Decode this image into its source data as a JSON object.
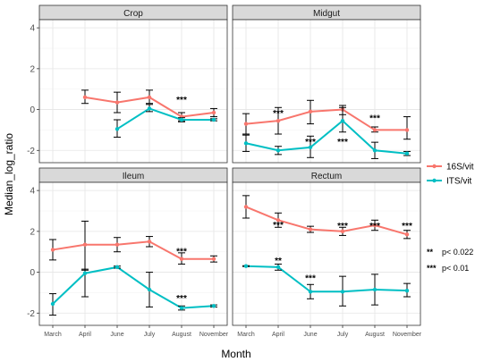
{
  "chart_data": {
    "type": "line",
    "xlabel": "Month",
    "ylabel": "Median_log_ratio",
    "categories": [
      "March",
      "April",
      "June",
      "July",
      "August",
      "November"
    ],
    "ylim": [
      -2.6,
      4.4
    ],
    "yticks": [
      -2,
      0,
      2,
      4
    ],
    "legend": {
      "placement": "right"
    },
    "colors": {
      "16S/vit": "#f8766d",
      "ITS/vit": "#00bfc4"
    },
    "panels": [
      {
        "name": "Crop",
        "series": [
          {
            "name": "16S/vit",
            "points": [
              {
                "x": "April",
                "y": 0.6,
                "lo": 0.3,
                "hi": 0.95
              },
              {
                "x": "June",
                "y": 0.35,
                "lo": -0.15,
                "hi": 0.85
              },
              {
                "x": "July",
                "y": 0.6,
                "lo": 0.3,
                "hi": 0.95
              },
              {
                "x": "August",
                "y": -0.35,
                "lo": -0.55,
                "hi": -0.15
              },
              {
                "x": "November",
                "y": -0.15,
                "lo": -0.35,
                "hi": 0.05
              }
            ]
          },
          {
            "name": "ITS/vit",
            "points": [
              {
                "x": "June",
                "y": -0.95,
                "lo": -1.35,
                "hi": -0.5
              },
              {
                "x": "July",
                "y": 0.05,
                "lo": -0.1,
                "hi": 0.25
              },
              {
                "x": "August",
                "y": -0.5,
                "lo": -0.6,
                "hi": -0.4
              },
              {
                "x": "November",
                "y": -0.5,
                "lo": -0.55,
                "hi": -0.45
              }
            ]
          }
        ],
        "annotations": [
          {
            "x": "August",
            "y": 0.5,
            "text": "***"
          }
        ]
      },
      {
        "name": "Midgut",
        "series": [
          {
            "name": "16S/vit",
            "points": [
              {
                "x": "March",
                "y": -0.7,
                "lo": -1.2,
                "hi": -0.2
              },
              {
                "x": "April",
                "y": -0.55,
                "lo": -1.2,
                "hi": 0.1
              },
              {
                "x": "June",
                "y": -0.1,
                "lo": -0.7,
                "hi": 0.45
              },
              {
                "x": "July",
                "y": 0.0,
                "lo": -0.25,
                "hi": 0.2
              },
              {
                "x": "August",
                "y": -1.0,
                "lo": -1.1,
                "hi": -0.85
              },
              {
                "x": "November",
                "y": -1.0,
                "lo": -1.45,
                "hi": -0.35
              }
            ]
          },
          {
            "name": "ITS/vit",
            "points": [
              {
                "x": "March",
                "y": -1.65,
                "lo": -2.05,
                "hi": -1.25
              },
              {
                "x": "April",
                "y": -2.0,
                "lo": -2.2,
                "hi": -1.8
              },
              {
                "x": "June",
                "y": -1.85,
                "lo": -2.35,
                "hi": -1.3
              },
              {
                "x": "July",
                "y": -0.55,
                "lo": -1.1,
                "hi": 0.1
              },
              {
                "x": "August",
                "y": -2.0,
                "lo": -2.4,
                "hi": -1.6
              },
              {
                "x": "November",
                "y": -2.15,
                "lo": -2.25,
                "hi": -2.05
              }
            ]
          }
        ],
        "annotations": [
          {
            "x": "April",
            "y": -0.15,
            "text": "***"
          },
          {
            "x": "June",
            "y": -1.55,
            "text": "***"
          },
          {
            "x": "July",
            "y": -1.55,
            "text": "***"
          },
          {
            "x": "August",
            "y": -0.4,
            "text": "***"
          }
        ]
      },
      {
        "name": "Ileum",
        "series": [
          {
            "name": "16S/vit",
            "points": [
              {
                "x": "March",
                "y": 1.1,
                "lo": 0.6,
                "hi": 1.6
              },
              {
                "x": "April",
                "y": 1.35,
                "lo": 0.1,
                "hi": 2.5
              },
              {
                "x": "June",
                "y": 1.35,
                "lo": 1.0,
                "hi": 1.7
              },
              {
                "x": "July",
                "y": 1.5,
                "lo": 1.25,
                "hi": 1.75
              },
              {
                "x": "August",
                "y": 0.65,
                "lo": 0.4,
                "hi": 0.95
              },
              {
                "x": "November",
                "y": 0.65,
                "lo": 0.5,
                "hi": 0.8
              }
            ]
          },
          {
            "name": "ITS/vit",
            "points": [
              {
                "x": "March",
                "y": -1.55,
                "lo": -2.1,
                "hi": -1.05
              },
              {
                "x": "April",
                "y": -0.05,
                "lo": -1.2,
                "hi": 0.15
              },
              {
                "x": "June",
                "y": 0.25,
                "lo": 0.2,
                "hi": 0.3
              },
              {
                "x": "July",
                "y": -0.85,
                "lo": -1.7,
                "hi": 0.0
              },
              {
                "x": "August",
                "y": -1.75,
                "lo": -1.85,
                "hi": -1.65
              },
              {
                "x": "November",
                "y": -1.65,
                "lo": -1.7,
                "hi": -1.6
              }
            ]
          }
        ],
        "annotations": [
          {
            "x": "August",
            "y": 1.05,
            "text": "***"
          },
          {
            "x": "August",
            "y": -1.25,
            "text": "***"
          }
        ]
      },
      {
        "name": "Rectum",
        "series": [
          {
            "name": "16S/vit",
            "points": [
              {
                "x": "March",
                "y": 3.2,
                "lo": 2.65,
                "hi": 3.75
              },
              {
                "x": "April",
                "y": 2.55,
                "lo": 2.2,
                "hi": 2.9
              },
              {
                "x": "June",
                "y": 2.1,
                "lo": 1.95,
                "hi": 2.25
              },
              {
                "x": "July",
                "y": 2.0,
                "lo": 1.8,
                "hi": 2.2
              },
              {
                "x": "August",
                "y": 2.3,
                "lo": 2.05,
                "hi": 2.55
              },
              {
                "x": "November",
                "y": 1.85,
                "lo": 1.65,
                "hi": 2.05
              }
            ]
          },
          {
            "name": "ITS/vit",
            "points": [
              {
                "x": "March",
                "y": 0.3,
                "lo": 0.28,
                "hi": 0.32
              },
              {
                "x": "April",
                "y": 0.25,
                "lo": 0.1,
                "hi": 0.4
              },
              {
                "x": "June",
                "y": -0.95,
                "lo": -1.3,
                "hi": -0.6
              },
              {
                "x": "July",
                "y": -0.95,
                "lo": -1.65,
                "hi": -0.2
              },
              {
                "x": "August",
                "y": -0.85,
                "lo": -1.6,
                "hi": -0.1
              },
              {
                "x": "November",
                "y": -0.9,
                "lo": -1.2,
                "hi": -0.55
              }
            ]
          }
        ],
        "annotations": [
          {
            "x": "April",
            "y": 0.6,
            "text": "**"
          },
          {
            "x": "April",
            "y": 2.35,
            "text": "***"
          },
          {
            "x": "June",
            "y": -0.25,
            "text": "***"
          },
          {
            "x": "July",
            "y": 2.3,
            "text": "***"
          },
          {
            "x": "August",
            "y": 2.3,
            "text": "***"
          },
          {
            "x": "November",
            "y": 2.3,
            "text": "***"
          }
        ]
      }
    ]
  },
  "legend_items": [
    {
      "name": "16S/vit",
      "color": "#f8766d"
    },
    {
      "name": "ITS/vit",
      "color": "#00bfc4"
    }
  ],
  "significance_notes": [
    {
      "stars": "**",
      "text": "p< 0.022"
    },
    {
      "stars": "***",
      "text": "p< 0.01"
    }
  ]
}
